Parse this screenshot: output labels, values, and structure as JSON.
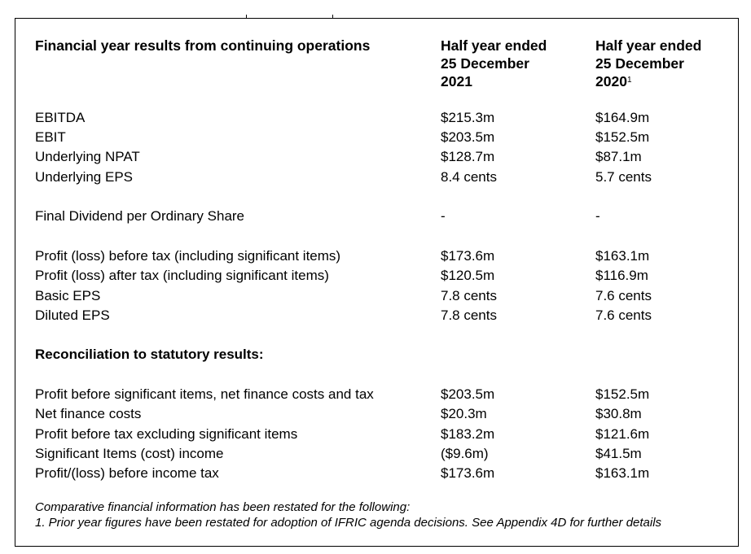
{
  "header": {
    "title": "Financial year results from continuing operations",
    "col1": [
      "Half year ended",
      "25 December",
      "2021"
    ],
    "col2": [
      "Half year ended",
      "25 December",
      "2020"
    ],
    "col2_footnote_marker": "1"
  },
  "groups": [
    [
      {
        "label": "EBITDA",
        "v2021": "$215.3m",
        "v2020": "$164.9m"
      },
      {
        "label": "EBIT",
        "v2021": "$203.5m",
        "v2020": "$152.5m"
      },
      {
        "label": "Underlying NPAT",
        "v2021": "$128.7m",
        "v2020": "$87.1m"
      },
      {
        "label": "Underlying EPS",
        "v2021": "8.4 cents",
        "v2020": "5.7 cents"
      }
    ],
    [
      {
        "label": "Final Dividend per Ordinary Share",
        "v2021": "-",
        "v2020": "-"
      }
    ],
    [
      {
        "label": "Profit (loss) before tax (including significant items)",
        "v2021": "$173.6m",
        "v2020": "$163.1m"
      },
      {
        "label": "Profit (loss) after tax (including significant items)",
        "v2021": "$120.5m",
        "v2020": "$116.9m"
      },
      {
        "label": "Basic EPS",
        "v2021": "7.8 cents",
        "v2020": "7.6 cents"
      },
      {
        "label": "Diluted EPS",
        "v2021": "7.8 cents",
        "v2020": "7.6 cents"
      }
    ],
    [
      {
        "label": "Reconciliation to statutory results:",
        "v2021": "",
        "v2020": "",
        "bold": true
      }
    ],
    [
      {
        "label": "Profit before significant items, net finance costs and tax",
        "v2021": "$203.5m",
        "v2020": "$152.5m"
      },
      {
        "label": "Net finance costs",
        "v2021": "$20.3m",
        "v2020": "$30.8m"
      },
      {
        "label": "Profit before tax excluding significant items",
        "v2021": "$183.2m",
        "v2020": "$121.6m"
      },
      {
        "label": "Significant Items (cost) income",
        "v2021": "($9.6m)",
        "v2020": "$41.5m"
      },
      {
        "label": "Profit/(loss) before income tax",
        "v2021": "$173.6m",
        "v2020": "$163.1m"
      }
    ]
  ],
  "footnote": {
    "intro": "Comparative financial information has been restated for the following:",
    "note1": "1. Prior year figures have been restated for adoption of IFRIC agenda decisions.  See Appendix 4D for further details"
  }
}
